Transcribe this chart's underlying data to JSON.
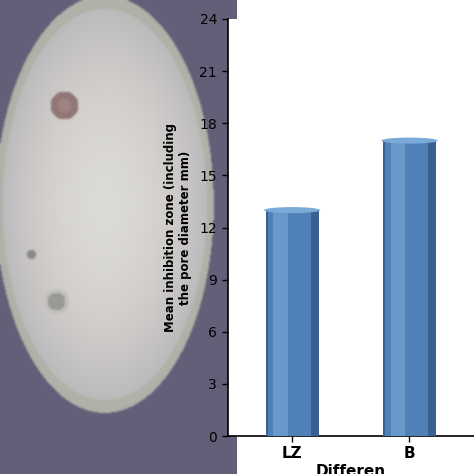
{
  "ylabel_line1": "Mean inhibition zone (including",
  "ylabel_line2": "the pore diameter mm)",
  "xlabel": "Differen",
  "categories": [
    "LZ",
    "B"
  ],
  "values": [
    13.0,
    17.0
  ],
  "bar_color_main": "#5080b8",
  "bar_color_light": "#7aaad8",
  "bar_color_dark": "#3a6090",
  "ylim": [
    0,
    24
  ],
  "yticks": [
    0,
    3,
    6,
    9,
    12,
    15,
    18,
    21,
    24
  ],
  "bar_width": 0.55,
  "background_color": "#ffffff",
  "photo_bg_color": [
    100,
    95,
    120
  ],
  "dish_color": [
    220,
    218,
    212
  ],
  "dish_border_color": [
    175,
    178,
    168
  ],
  "well1_color": [
    145,
    120,
    118
  ],
  "well2_outer_color": [
    195,
    193,
    188
  ],
  "well2_inner_color": [
    155,
    153,
    148
  ]
}
